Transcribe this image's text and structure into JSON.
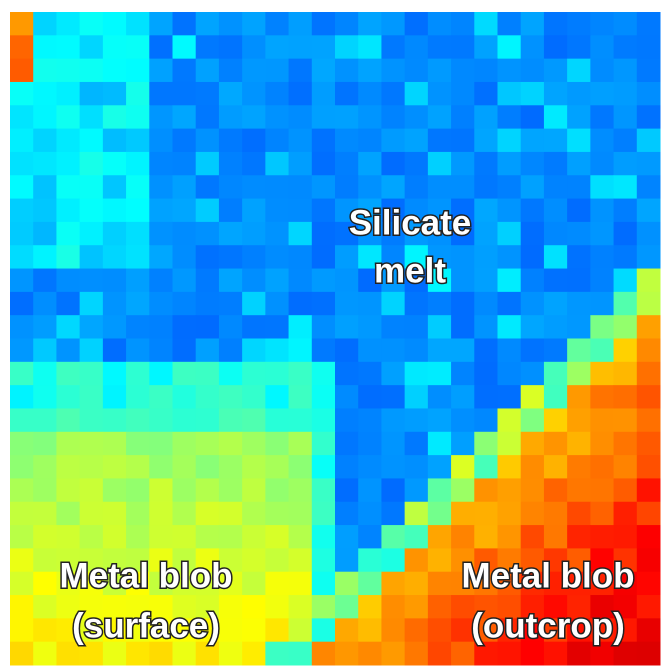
{
  "labels": {
    "silicate": [
      "Silicate",
      "melt"
    ],
    "surface": [
      "Metal blob",
      "(surface)"
    ],
    "outcrop": [
      "Metal blob",
      "(outcrop)"
    ]
  }
}
